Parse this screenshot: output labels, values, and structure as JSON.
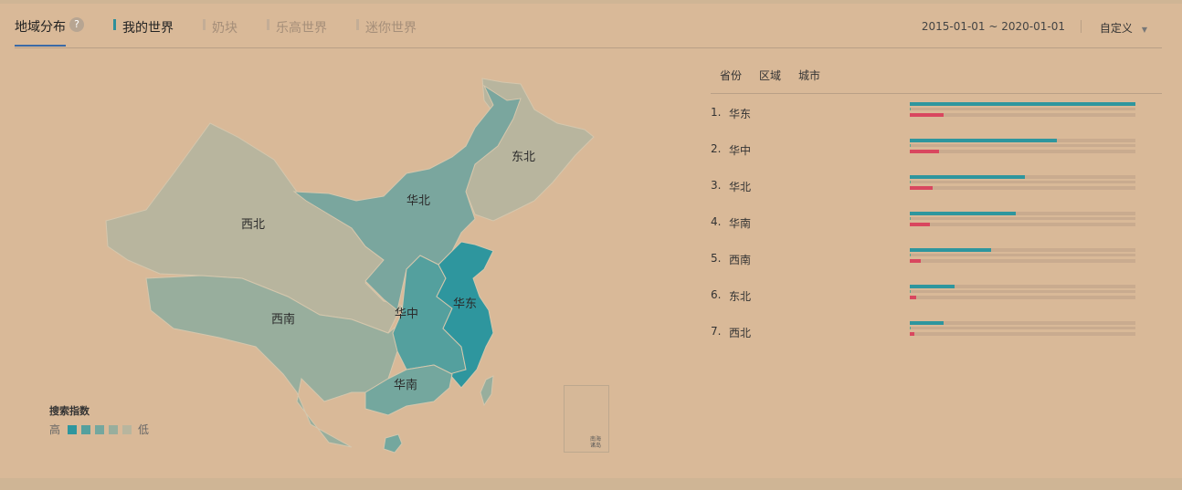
{
  "header": {
    "title": "地域分布",
    "help_icon": "?",
    "tabs": [
      {
        "label": "我的世界",
        "active": true
      },
      {
        "label": "奶块",
        "active": false
      },
      {
        "label": "乐高世界",
        "active": false
      },
      {
        "label": "迷你世界",
        "active": false
      }
    ],
    "date_range": "2015-01-01 ~ 2020-01-01",
    "custom_label": "自定义",
    "caret_icon": "▼"
  },
  "map": {
    "region_labels": [
      "东北",
      "华北",
      "西北",
      "华东",
      "华中",
      "西南",
      "华南"
    ],
    "inset_label": "南海诸岛"
  },
  "legend": {
    "title": "搜索指数",
    "high": "高",
    "low": "低",
    "colors": [
      "#2e969e",
      "#54a09e",
      "#74a79e",
      "#98ae9d",
      "#b8b59e"
    ]
  },
  "ranking": {
    "tabs": [
      "省份",
      "区域",
      "城市"
    ],
    "colors": {
      "primary": "#2e969e",
      "secondary": "#d9475f",
      "track": "#c9ab8f"
    },
    "rows": [
      {
        "rank": "1.",
        "name": "华东",
        "primary": 1.0,
        "secondary": 0.15
      },
      {
        "rank": "2.",
        "name": "华中",
        "primary": 0.65,
        "secondary": 0.13
      },
      {
        "rank": "3.",
        "name": "华北",
        "primary": 0.51,
        "secondary": 0.1
      },
      {
        "rank": "4.",
        "name": "华南",
        "primary": 0.47,
        "secondary": 0.09
      },
      {
        "rank": "5.",
        "name": "西南",
        "primary": 0.36,
        "secondary": 0.05
      },
      {
        "rank": "6.",
        "name": "东北",
        "primary": 0.2,
        "secondary": 0.03
      },
      {
        "rank": "7.",
        "name": "西北",
        "primary": 0.15,
        "secondary": 0.02
      }
    ]
  }
}
